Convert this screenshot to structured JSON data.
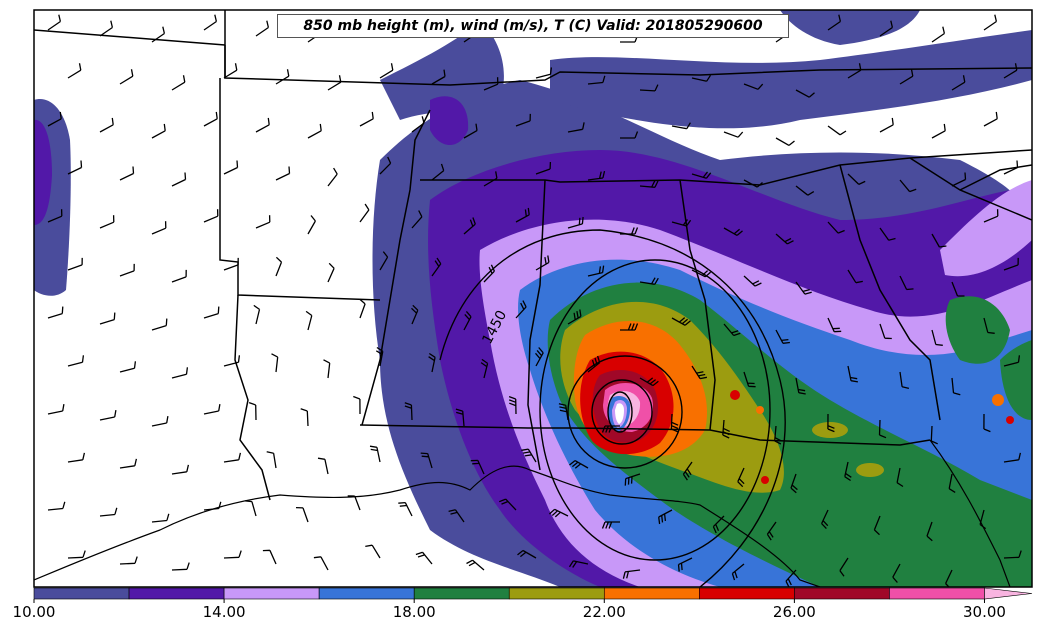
{
  "title": "850 mb height (m), wind (m/s), T (C) Valid: 201805290600",
  "contour_label": "1450",
  "colorbar": {
    "tick_labels": [
      "10.00",
      "14.00",
      "18.00",
      "22.00",
      "26.00",
      "30.00"
    ],
    "tick_values": [
      10,
      14,
      18,
      22,
      26,
      30
    ],
    "range": [
      10,
      31
    ],
    "bins": [
      {
        "from": 10,
        "to": 12,
        "color": "#4a4c9c"
      },
      {
        "from": 12,
        "to": 14,
        "color": "#5218a8"
      },
      {
        "from": 14,
        "to": 16,
        "color": "#c898f8"
      },
      {
        "from": 16,
        "to": 18,
        "color": "#3874d8"
      },
      {
        "from": 18,
        "to": 20,
        "color": "#208040"
      },
      {
        "from": 20,
        "to": 22,
        "color": "#9c9c10"
      },
      {
        "from": 22,
        "to": 24,
        "color": "#f87000"
      },
      {
        "from": 24,
        "to": 26,
        "color": "#d80000"
      },
      {
        "from": 26,
        "to": 28,
        "color": "#a00828"
      },
      {
        "from": 28,
        "to": 30,
        "color": "#f050a8"
      },
      {
        "from": 30,
        "to": 31,
        "color": "#f8b4e0"
      }
    ]
  }
}
